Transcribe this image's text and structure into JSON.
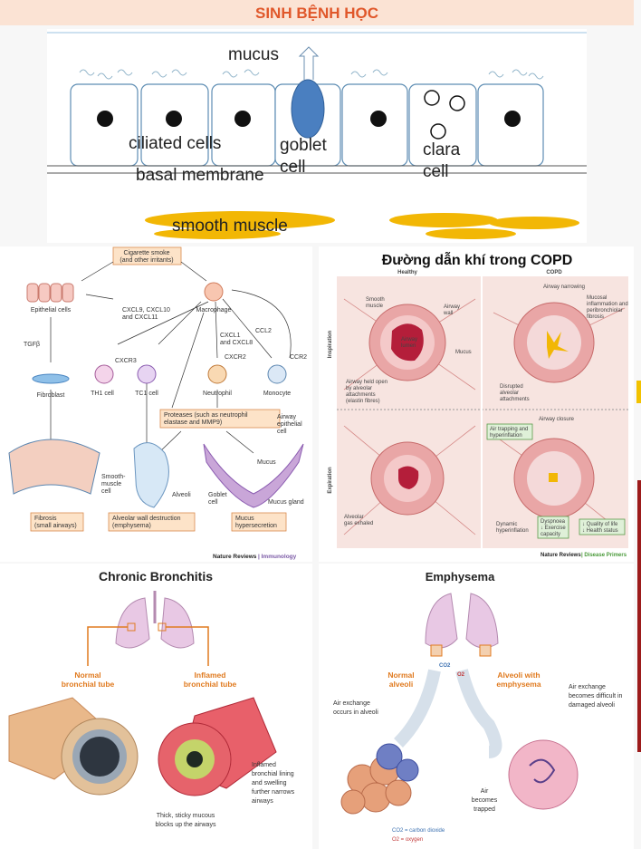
{
  "header": {
    "title": "SINH BỆNH HỌC"
  },
  "epithelium": {
    "mucus": "mucus",
    "ciliated": "ciliated cells",
    "goblet": [
      "goblet",
      "cell"
    ],
    "clara": [
      "clara",
      "cell"
    ],
    "basal": "basal membrane",
    "smooth": "smooth muscle"
  },
  "immunology": {
    "smoke": [
      "Cigarette smoke",
      "(and other irritants)"
    ],
    "epithelial": "Epithelial cells",
    "cxcl9": [
      "CXCL9, CXCL10",
      "and CXCL11"
    ],
    "macrophage": "Macrophage",
    "tgfb": "TGFβ",
    "ccl2": "CCL2",
    "cxcl1": [
      "CXCL1",
      "and CXCL8"
    ],
    "cxcr3": "CXCR3",
    "cxcr2": "CXCR2",
    "ccr2": "CCR2",
    "fibroblast": "Fibroblast",
    "th1": "TH1 cell",
    "tc1": "TC1 cell",
    "neutrophil": "Neutrophil",
    "monocyte": "Monocyte",
    "proteases": [
      "Proteases (such as neutrophil",
      "elastase and MMP9)"
    ],
    "airway_epi": [
      "Airway",
      "epithelial",
      "cell"
    ],
    "mucus": "Mucus",
    "alveoli": "Alveoli",
    "smooth_cell": [
      "Smooth-",
      "muscle",
      "cell"
    ],
    "goblet": [
      "Goblet",
      "cell"
    ],
    "gland": "Mucus gland",
    "fibrosis": [
      "Fibrosis",
      "(small airways)"
    ],
    "destruction": [
      "Alveolar wall destruction",
      "(emphysema)"
    ],
    "hyper": [
      "Mucus",
      "hypersecretion"
    ],
    "source": "Nature Reviews",
    "journal": "| Immunology"
  },
  "copd": {
    "title": "Đường dẫn khí trong COPD",
    "healthy": "Healthy",
    "copd": "COPD",
    "inspiration": "Inspiration",
    "expiration": "Expiration",
    "smooth": [
      "Smooth",
      "muscle"
    ],
    "wall": [
      "Airway",
      "wall"
    ],
    "lumen": [
      "Airway",
      "lumen"
    ],
    "mucus": "Mucus",
    "held": [
      "Airway held open",
      "by alveolar",
      "attachments",
      "(elastin fibres)"
    ],
    "narrowing": "Airway narrowing",
    "inflammation": [
      "Mucosal",
      "inflammation and",
      "peribronchiolar",
      "fibrosis"
    ],
    "disrupted": [
      "Disrupted",
      "alveolar",
      "attachments"
    ],
    "closure": "Airway closure",
    "trapping": [
      "Air trapping and",
      "hyperinflation"
    ],
    "exhaled": [
      "Alveolar",
      "gas exhaled"
    ],
    "dynamic": [
      "Dynamic",
      "hyperinflation"
    ],
    "dyspnoea": [
      "Dyspnoea",
      "↓ Exercise",
      "capacity"
    ],
    "quality": [
      "↓ Quality of life",
      "↓ Health status"
    ],
    "source": "Nature Reviews",
    "journal": "| Disease Primers"
  },
  "bronchitis": {
    "title": "Chronic Bronchitis",
    "normal": [
      "Normal",
      "bronchial tube"
    ],
    "inflamed": [
      "Inflamed",
      "bronchial tube"
    ],
    "lining": [
      "Inflamed",
      "bronchial lining",
      "and swelling",
      "further narrows",
      "airways"
    ],
    "mucous": [
      "Thick, sticky mucous",
      "blocks up the airways"
    ]
  },
  "emphysema": {
    "title": "Emphysema",
    "normal": [
      "Normal",
      "alveoli"
    ],
    "damaged": [
      "Alveoli with",
      "emphysema"
    ],
    "occurs": [
      "Air exchange",
      "occurs in alveoli"
    ],
    "difficult": [
      "Air exchange",
      "becomes difficult in",
      "damaged alveoli"
    ],
    "trapped": [
      "Air",
      "becomes",
      "trapped"
    ],
    "co2": "CO2",
    "o2": "O2",
    "legend_co2": "CO2 = carbon dioxide",
    "legend_o2": "O2 = oxygen"
  }
}
